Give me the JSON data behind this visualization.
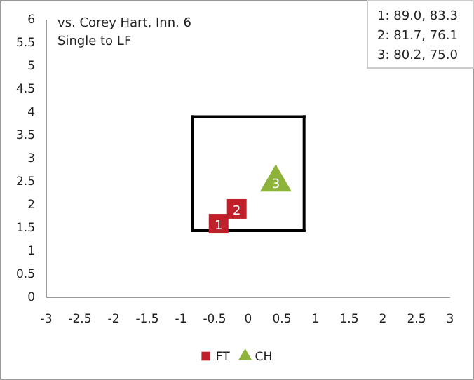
{
  "chart_data": {
    "type": "scatter",
    "title": "vs. Corey Hart, Inn. 6",
    "subtitle": "Single to LF",
    "annotations": [
      "1: 89.0, 83.3",
      "2: 81.7, 76.1",
      "3: 80.2, 75.0",
      {
        "text": "1",
        "x": -0.44,
        "y": 1.59
      },
      {
        "text": "2",
        "x": -0.17,
        "y": 1.91
      },
      {
        "text": "3",
        "x": 0.41,
        "y": 2.48
      }
    ],
    "xlim": [
      -3,
      3
    ],
    "xticks": [
      -3,
      -2.5,
      -2,
      -1.5,
      -1,
      -0.5,
      0,
      0.5,
      1,
      1.5,
      2,
      2.5,
      3
    ],
    "ylim": [
      0,
      6
    ],
    "yticks": [
      0,
      0.5,
      1,
      1.5,
      2,
      2.5,
      3,
      3.5,
      4,
      4.5,
      5,
      5.5,
      6
    ],
    "grid": false,
    "legend": "bottom",
    "series": [
      {
        "type": "line",
        "color": "#000000",
        "x": [
          -0.83,
          0.83
        ],
        "values": [
          1.44,
          1.44
        ],
        "marker": "none",
        "line_style": "solid"
      },
      {
        "type": "line",
        "color": "#000000",
        "x": [
          0.83,
          0.83
        ],
        "values": [
          1.44,
          3.9
        ],
        "marker": "none",
        "line_style": "solid"
      },
      {
        "type": "line",
        "color": "#000000",
        "x": [
          -0.83,
          0.83
        ],
        "values": [
          3.9,
          3.9
        ],
        "marker": "none",
        "line_style": "solid"
      },
      {
        "type": "line",
        "color": "#000000",
        "x": [
          -0.83,
          -0.83
        ],
        "values": [
          1.44,
          3.9
        ],
        "marker": "none",
        "line_style": "solid"
      },
      {
        "name": "FT",
        "color": "#c0202a",
        "marker": "square",
        "x": [
          -0.44,
          -0.17
        ],
        "values": [
          1.59,
          1.91
        ]
      },
      {
        "name": "CH",
        "color": "#8db33a",
        "marker": "triangle",
        "x": [
          0.41
        ],
        "values": [
          2.48
        ]
      }
    ]
  }
}
